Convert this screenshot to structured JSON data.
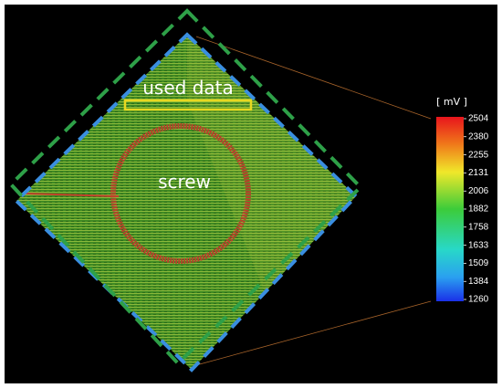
{
  "annotations": {
    "used_data": "used data",
    "screw": "screw"
  },
  "colorbar": {
    "title": "[ mV ]",
    "ticks": [
      2504,
      2380,
      2255,
      2131,
      2006,
      1882,
      1758,
      1633,
      1509,
      1384,
      1260
    ]
  }
}
